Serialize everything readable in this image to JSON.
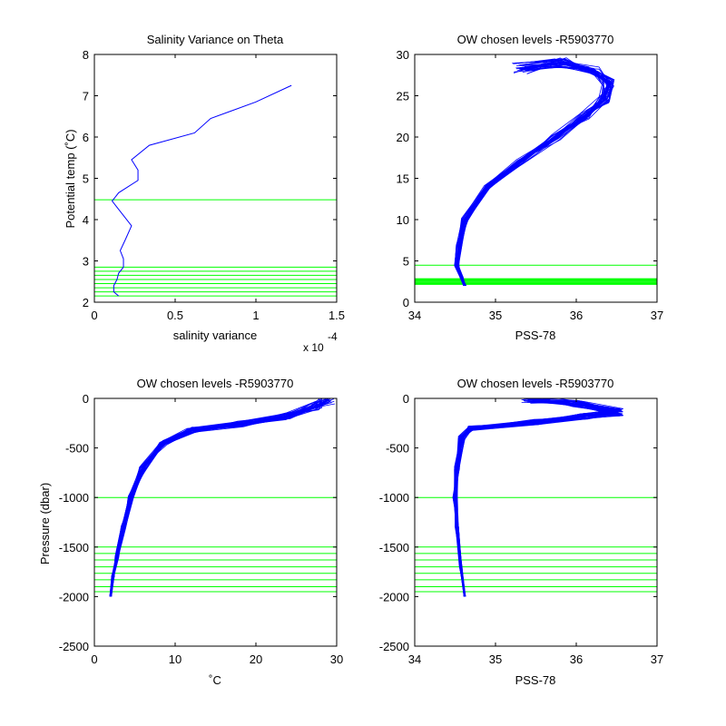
{
  "chart_data": [
    {
      "type": "line",
      "title": "Salinity Variance on Theta",
      "xlabel": "salinity variance",
      "ylabel": "Potential temp (˚C)",
      "xlim": [
        0,
        1.5
      ],
      "ylim": [
        2,
        8
      ],
      "x_ticks": [
        "0",
        "0.5",
        "1",
        "1.5"
      ],
      "y_ticks": [
        "2",
        "3",
        "4",
        "5",
        "6",
        "7",
        "8"
      ],
      "x_exponent": [
        "x 10",
        "-4"
      ],
      "grid": false,
      "colors": {
        "series": "#0000ff",
        "levels": "#00ff00"
      },
      "series": [
        {
          "values": [
            {
              "x": 0.15,
              "y": 2.15
            },
            {
              "x": 0.12,
              "y": 2.25
            },
            {
              "x": 0.12,
              "y": 2.4
            },
            {
              "x": 0.14,
              "y": 2.55
            },
            {
              "x": 0.15,
              "y": 2.7
            },
            {
              "x": 0.18,
              "y": 2.85
            },
            {
              "x": 0.18,
              "y": 3.05
            },
            {
              "x": 0.16,
              "y": 3.25
            },
            {
              "x": 0.19,
              "y": 3.5
            },
            {
              "x": 0.23,
              "y": 3.85
            },
            {
              "x": 0.17,
              "y": 4.15
            },
            {
              "x": 0.11,
              "y": 4.45
            },
            {
              "x": 0.15,
              "y": 4.65
            },
            {
              "x": 0.27,
              "y": 4.95
            },
            {
              "x": 0.27,
              "y": 5.2
            },
            {
              "x": 0.23,
              "y": 5.45
            },
            {
              "x": 0.34,
              "y": 5.8
            },
            {
              "x": 0.62,
              "y": 6.1
            },
            {
              "x": 0.72,
              "y": 6.45
            },
            {
              "x": 1.0,
              "y": 6.85
            },
            {
              "x": 1.22,
              "y": 7.25
            }
          ]
        }
      ],
      "levels_y": [
        2.15,
        2.25,
        2.35,
        2.45,
        2.55,
        2.65,
        2.75,
        2.85,
        4.48
      ]
    },
    {
      "type": "line",
      "title": "OW chosen levels -R5903770",
      "xlabel": "PSS-78",
      "ylabel": "",
      "xlim": [
        34,
        37
      ],
      "ylim": [
        0,
        30
      ],
      "x_ticks": [
        "34",
        "35",
        "36",
        "37"
      ],
      "y_ticks": [
        "0",
        "5",
        "10",
        "15",
        "20",
        "25",
        "30"
      ],
      "grid": false,
      "colors": {
        "series": "#0000ff",
        "levels": "#00ff00"
      },
      "series": [
        {
          "values": [
            {
              "x": 34.62,
              "y": 2.0
            },
            {
              "x": 34.58,
              "y": 3.0
            },
            {
              "x": 34.52,
              "y": 4.5
            },
            {
              "x": 34.55,
              "y": 7.0
            },
            {
              "x": 34.62,
              "y": 10.0
            },
            {
              "x": 34.9,
              "y": 14.0
            },
            {
              "x": 35.3,
              "y": 17.0
            },
            {
              "x": 35.75,
              "y": 20.0
            },
            {
              "x": 36.1,
              "y": 22.5
            },
            {
              "x": 36.35,
              "y": 24.5
            },
            {
              "x": 36.4,
              "y": 26.5
            },
            {
              "x": 36.2,
              "y": 28.0
            },
            {
              "x": 35.8,
              "y": 29.0
            },
            {
              "x": 35.3,
              "y": 28.3
            }
          ]
        }
      ],
      "levels_y": [
        2.15,
        2.25,
        2.35,
        2.45,
        2.55,
        2.65,
        2.75,
        2.85,
        4.48
      ]
    },
    {
      "type": "line",
      "title": "OW chosen levels -R5903770",
      "xlabel": "˚C",
      "ylabel": "Pressure (dbar)",
      "xlim": [
        0,
        30
      ],
      "ylim": [
        -2500,
        0
      ],
      "x_ticks": [
        "0",
        "10",
        "20",
        "30"
      ],
      "y_ticks": [
        "-2500",
        "-2000",
        "-1500",
        "-1000",
        "-500",
        "0"
      ],
      "grid": false,
      "colors": {
        "series": "#0000ff",
        "levels": "#00ff00"
      },
      "series": [
        {
          "values": [
            {
              "x": 2.0,
              "y": -2000
            },
            {
              "x": 2.3,
              "y": -1800
            },
            {
              "x": 2.8,
              "y": -1600
            },
            {
              "x": 3.6,
              "y": -1300
            },
            {
              "x": 4.5,
              "y": -1000
            },
            {
              "x": 6.0,
              "y": -700
            },
            {
              "x": 8.5,
              "y": -450
            },
            {
              "x": 12.0,
              "y": -320
            },
            {
              "x": 18.0,
              "y": -260
            },
            {
              "x": 24.0,
              "y": -180
            },
            {
              "x": 27.5,
              "y": -80
            },
            {
              "x": 29.0,
              "y": -10
            }
          ]
        }
      ],
      "levels_y": [
        -1000,
        -1500,
        -1565,
        -1630,
        -1700,
        -1765,
        -1830,
        -1900,
        -1950
      ]
    },
    {
      "type": "line",
      "title": "OW chosen levels -R5903770",
      "xlabel": "PSS-78",
      "ylabel": "",
      "xlim": [
        34,
        37
      ],
      "ylim": [
        -2500,
        0
      ],
      "x_ticks": [
        "34",
        "35",
        "36",
        "37"
      ],
      "y_ticks": [
        "-2500",
        "-2000",
        "-1500",
        "-1000",
        "-500",
        "0"
      ],
      "grid": false,
      "colors": {
        "series": "#0000ff",
        "levels": "#00ff00"
      },
      "series": [
        {
          "values": [
            {
              "x": 34.62,
              "y": -2000
            },
            {
              "x": 34.57,
              "y": -1700
            },
            {
              "x": 34.52,
              "y": -1300
            },
            {
              "x": 34.5,
              "y": -1000
            },
            {
              "x": 34.52,
              "y": -700
            },
            {
              "x": 34.58,
              "y": -400
            },
            {
              "x": 34.7,
              "y": -300
            },
            {
              "x": 35.5,
              "y": -240
            },
            {
              "x": 36.1,
              "y": -180
            },
            {
              "x": 36.52,
              "y": -140
            },
            {
              "x": 36.0,
              "y": -60
            },
            {
              "x": 35.4,
              "y": -5
            }
          ]
        }
      ],
      "levels_y": [
        -1000,
        -1500,
        -1565,
        -1630,
        -1700,
        -1765,
        -1830,
        -1900,
        -1950
      ]
    }
  ]
}
